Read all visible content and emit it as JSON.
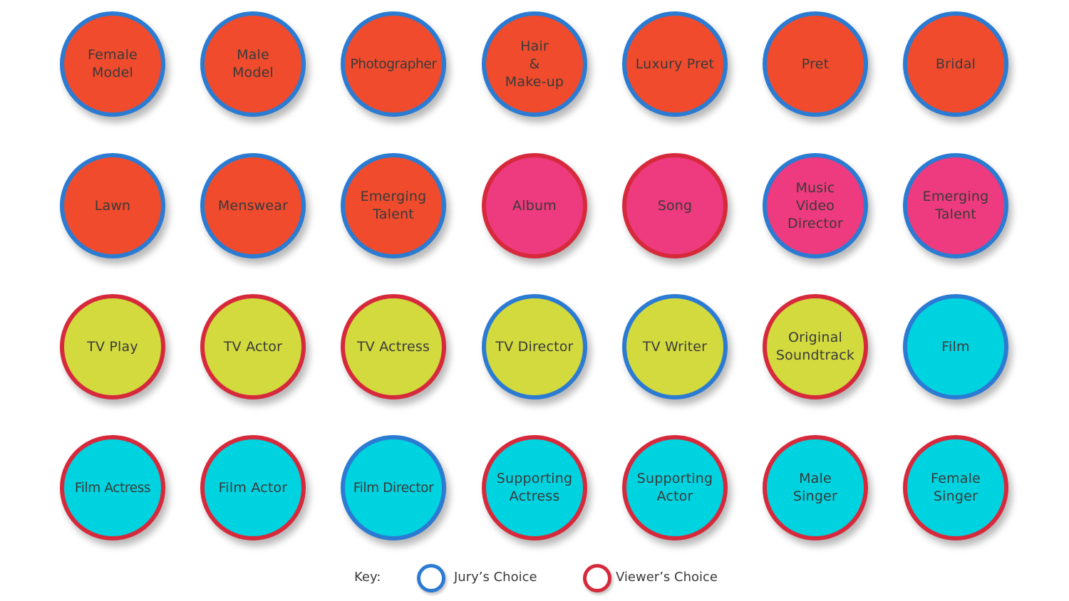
{
  "colors": {
    "fashion_fill": "#f04b2c",
    "music_fill": "#ee3a7e",
    "tv_fill": "#d3da3e",
    "film_fill": "#00d3e0",
    "jury_ring": "#2b7bd3",
    "viewer_ring": "#d62a3c"
  },
  "categories": [
    {
      "label": "Female\nModel",
      "fill": "fashion",
      "ring": "jury"
    },
    {
      "label": "Male\nModel",
      "fill": "fashion",
      "ring": "jury"
    },
    {
      "label": "Photographer",
      "fill": "fashion",
      "ring": "jury"
    },
    {
      "label": "Hair\n&\nMake-up",
      "fill": "fashion",
      "ring": "jury"
    },
    {
      "label": "Luxury  Pret",
      "fill": "fashion",
      "ring": "jury"
    },
    {
      "label": "Pret",
      "fill": "fashion",
      "ring": "jury"
    },
    {
      "label": "Bridal",
      "fill": "fashion",
      "ring": "jury"
    },
    {
      "label": "Lawn",
      "fill": "fashion",
      "ring": "jury"
    },
    {
      "label": "Menswear",
      "fill": "fashion",
      "ring": "jury"
    },
    {
      "label": "Emerging\nTalent",
      "fill": "fashion",
      "ring": "jury"
    },
    {
      "label": "Album",
      "fill": "music",
      "ring": "viewer"
    },
    {
      "label": "Song",
      "fill": "music",
      "ring": "viewer"
    },
    {
      "label": "Music\nVideo\nDirector",
      "fill": "music",
      "ring": "jury"
    },
    {
      "label": "Emerging\nTalent",
      "fill": "music",
      "ring": "jury"
    },
    {
      "label": "TV Play",
      "fill": "tv",
      "ring": "viewer"
    },
    {
      "label": "TV Actor",
      "fill": "tv",
      "ring": "viewer"
    },
    {
      "label": "TV Actress",
      "fill": "tv",
      "ring": "viewer"
    },
    {
      "label": "TV Director",
      "fill": "tv",
      "ring": "jury"
    },
    {
      "label": "TV Writer",
      "fill": "tv",
      "ring": "jury"
    },
    {
      "label": "Original\nSoundtrack",
      "fill": "tv",
      "ring": "viewer"
    },
    {
      "label": "Film",
      "fill": "film",
      "ring": "jury"
    },
    {
      "label": "Film Actress",
      "fill": "film",
      "ring": "viewer"
    },
    {
      "label": "Film Actor",
      "fill": "film",
      "ring": "viewer"
    },
    {
      "label": "Film Director",
      "fill": "film",
      "ring": "jury"
    },
    {
      "label": "Supporting\nActress",
      "fill": "film",
      "ring": "viewer"
    },
    {
      "label": "Supporting\nActor",
      "fill": "film",
      "ring": "viewer"
    },
    {
      "label": "Male\nSinger",
      "fill": "film",
      "ring": "viewer"
    },
    {
      "label": "Female\nSinger",
      "fill": "film",
      "ring": "viewer"
    }
  ],
  "key": {
    "title": "Key:",
    "jury_label": "Jury’s Choice",
    "viewer_label": "Viewer’s Choice"
  }
}
